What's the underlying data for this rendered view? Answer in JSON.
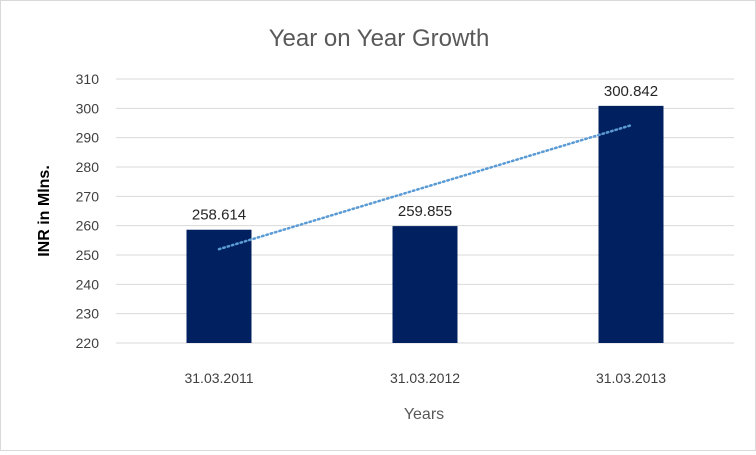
{
  "chart_data": {
    "type": "bar",
    "title": "Year on Year Growth",
    "xlabel": "Years",
    "ylabel": "INR in Mlns.",
    "categories": [
      "31.03.2011",
      "31.03.2012",
      "31.03.2013"
    ],
    "values": [
      258.614,
      259.855,
      300.842
    ],
    "value_labels": [
      "258.614",
      "259.855",
      "300.842"
    ],
    "ylim": [
      220,
      310
    ],
    "yticks": [
      220,
      230,
      240,
      250,
      260,
      270,
      280,
      290,
      300,
      310
    ],
    "grid": true,
    "legend": "none",
    "trendline": {
      "type": "linear",
      "style": "dotted"
    },
    "colors": {
      "bar": "#002060",
      "trendline": "#5b9bd5",
      "grid": "#d9d9d9"
    }
  }
}
